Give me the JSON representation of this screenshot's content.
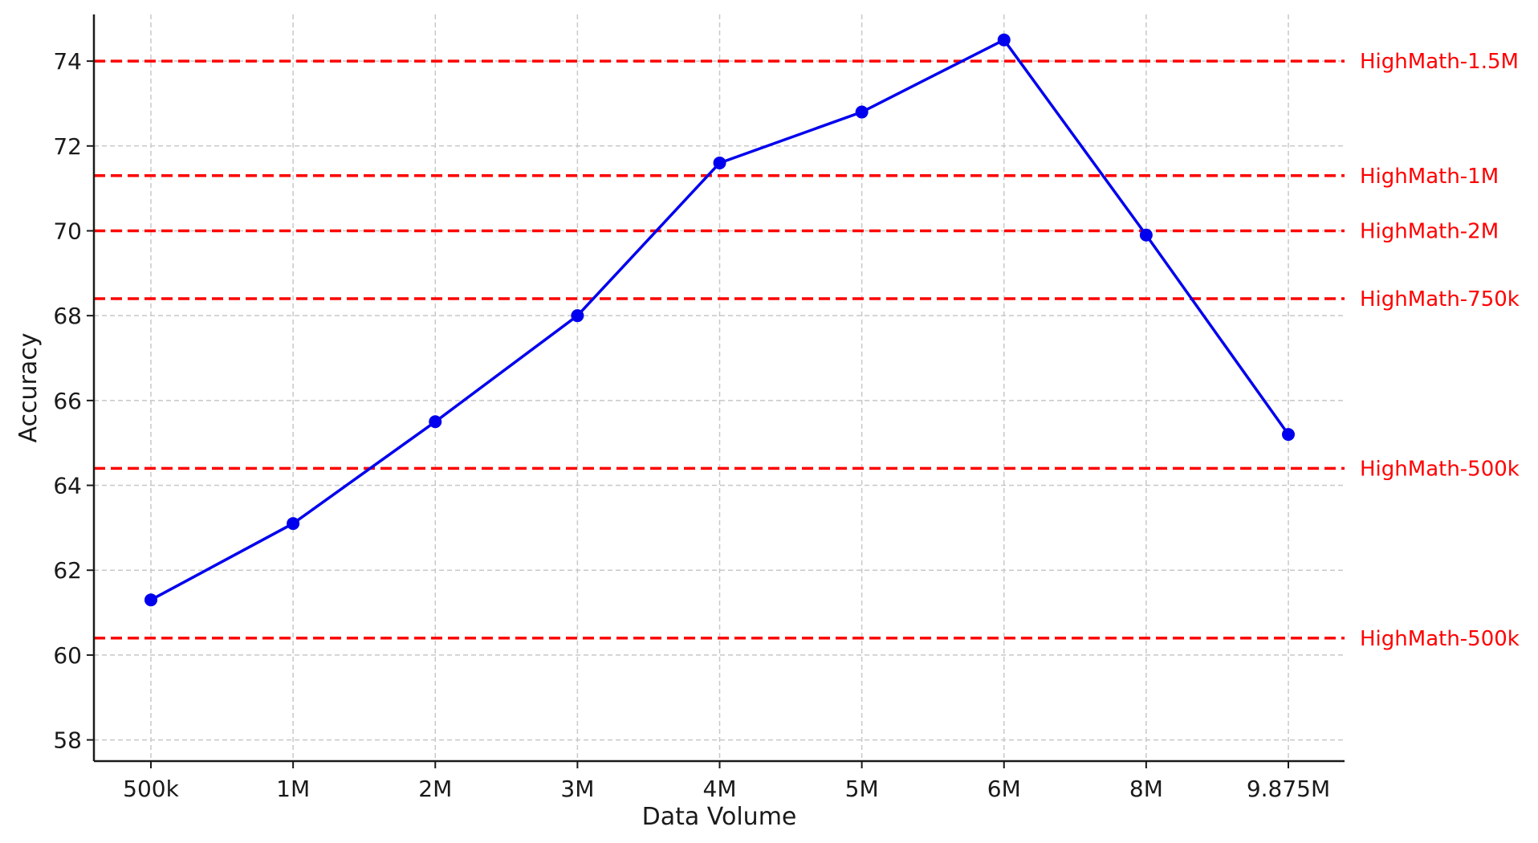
{
  "chart_data": {
    "type": "line",
    "title": "",
    "xlabel": "Data Volume",
    "ylabel": "Accuracy",
    "categories": [
      "500k",
      "1M",
      "2M",
      "3M",
      "4M",
      "5M",
      "6M",
      "8M",
      "9.875M"
    ],
    "series": [
      {
        "values": [
          61.3,
          63.1,
          65.5,
          68.0,
          71.6,
          72.8,
          74.5,
          69.9,
          65.2
        ],
        "color": "#0000ee",
        "marker": "circle"
      }
    ],
    "reference_lines": [
      {
        "label": "HighMath-1.5M",
        "value": 74.0
      },
      {
        "label": "HighMath-1M",
        "value": 71.3
      },
      {
        "label": "HighMath-2M",
        "value": 70.0
      },
      {
        "label": "HighMath-750k",
        "value": 68.4
      },
      {
        "label": "HighMath-500k",
        "value": 64.4
      },
      {
        "label": "HighMath-500k",
        "value": 60.4
      }
    ],
    "reference_color": "#ff0000",
    "reference_style": "dashed",
    "ylim": [
      57.5,
      75.1
    ],
    "yticks": [
      58,
      60,
      62,
      64,
      66,
      68,
      70,
      72,
      74
    ],
    "grid": true,
    "legend": "none"
  }
}
